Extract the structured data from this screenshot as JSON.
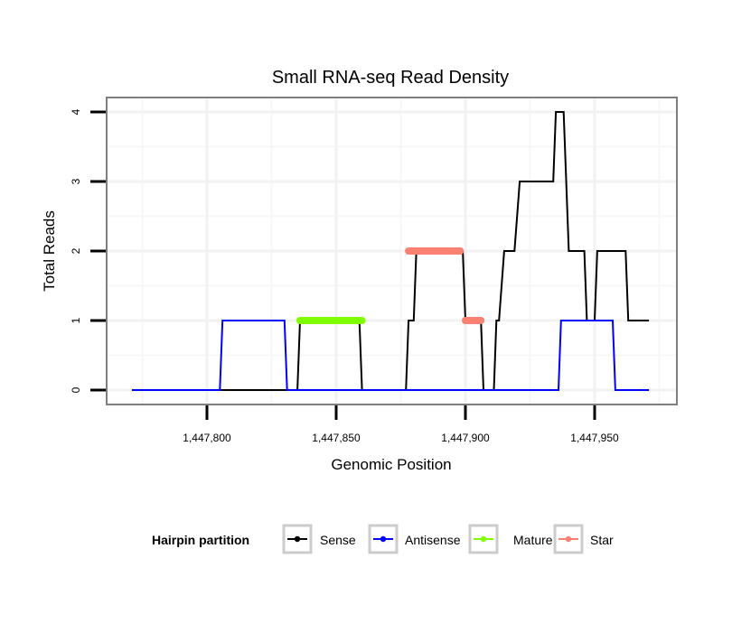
{
  "chart_data": {
    "type": "line",
    "title": "Small RNA-seq Read Density",
    "xlabel": "Genomic Position",
    "ylabel": "Total Reads",
    "xlim": [
      1447754,
      1447975
    ],
    "ylim": [
      -0.18,
      4.2
    ],
    "xticks": [
      1447800,
      1447850,
      1447900,
      1447950
    ],
    "xtick_labels": [
      "1,447,800",
      "1,447,850",
      "1,447,900",
      "1,447,950"
    ],
    "yticks": [
      0,
      1,
      2,
      3,
      4
    ],
    "ytick_labels": [
      "0",
      "1",
      "2",
      "3",
      "4"
    ],
    "grid": true,
    "legend": {
      "title": "Hairpin partition",
      "position": "bottom",
      "entries": [
        "Sense",
        "Antisense",
        "Mature",
        "Star"
      ]
    },
    "series": [
      {
        "name": "Sense",
        "color": "#000000",
        "points": [
          [
            1447771,
            0
          ],
          [
            1447835,
            0
          ],
          [
            1447836,
            1
          ],
          [
            1447859,
            1
          ],
          [
            1447860,
            0
          ],
          [
            1447877,
            0
          ],
          [
            1447878,
            1
          ],
          [
            1447880,
            1
          ],
          [
            1447881,
            2
          ],
          [
            1447899,
            2
          ],
          [
            1447900,
            1
          ],
          [
            1447906,
            1
          ],
          [
            1447907,
            0
          ],
          [
            1447911,
            0
          ],
          [
            1447912,
            1
          ],
          [
            1447913,
            1
          ],
          [
            1447915,
            2
          ],
          [
            1447919,
            2
          ],
          [
            1447921,
            3
          ],
          [
            1447934,
            3
          ],
          [
            1447935,
            4
          ],
          [
            1447938,
            4
          ],
          [
            1447940,
            2
          ],
          [
            1447946,
            2
          ],
          [
            1447947,
            1
          ],
          [
            1447950,
            1
          ],
          [
            1447951,
            2
          ],
          [
            1447962,
            2
          ],
          [
            1447963,
            1
          ],
          [
            1447971,
            1
          ]
        ]
      },
      {
        "name": "Antisense",
        "color": "#0000ff",
        "points": [
          [
            1447771,
            0
          ],
          [
            1447805,
            0
          ],
          [
            1447806,
            1
          ],
          [
            1447830,
            1
          ],
          [
            1447831,
            0
          ],
          [
            1447936,
            0
          ],
          [
            1447937,
            1
          ],
          [
            1447957,
            1
          ],
          [
            1447958,
            0
          ],
          [
            1447971,
            0
          ]
        ]
      },
      {
        "name": "Mature",
        "color": "#7fff00",
        "segments": [
          [
            1447836,
            1447860,
            1
          ]
        ]
      },
      {
        "name": "Star",
        "color": "#fa8072",
        "segments": [
          [
            1447878,
            1447898,
            2
          ],
          [
            1447900,
            1447906,
            1
          ]
        ]
      }
    ]
  }
}
